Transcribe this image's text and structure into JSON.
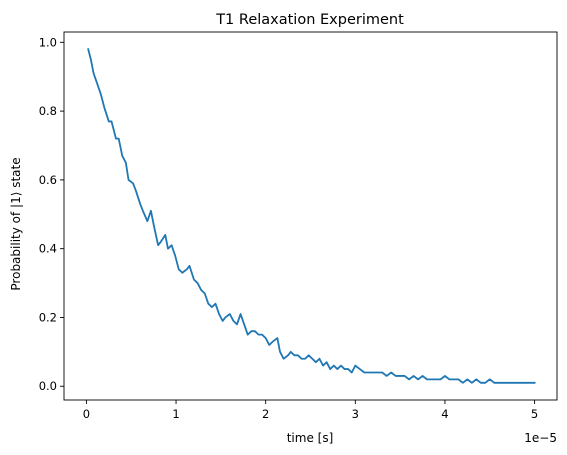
{
  "chart_data": {
    "type": "line",
    "title": "T1 Relaxation Experiment",
    "xlabel": "time [s]",
    "ylabel": "Probability of |1⟩ state",
    "x_offset_label": "1e−5",
    "x_scale": 1e-05,
    "xlim": [
      -0.25,
      5.25
    ],
    "ylim": [
      -0.04,
      1.03
    ],
    "x_ticks": [
      0,
      1,
      2,
      3,
      4,
      5
    ],
    "x_tick_labels": [
      "0",
      "1",
      "2",
      "3",
      "4",
      "5"
    ],
    "y_ticks": [
      0.0,
      0.2,
      0.4,
      0.6,
      0.8,
      1.0
    ],
    "y_tick_labels": [
      "0.0",
      "0.2",
      "0.4",
      "0.6",
      "0.8",
      "1.0"
    ],
    "grid": false,
    "line_color": "#1f77b4",
    "series": [
      {
        "x": [
          0.02,
          0.05,
          0.08,
          0.12,
          0.16,
          0.2,
          0.25,
          0.28,
          0.33,
          0.36,
          0.4,
          0.44,
          0.47,
          0.52,
          0.55,
          0.6,
          0.63,
          0.68,
          0.72,
          0.75,
          0.8,
          0.83,
          0.88,
          0.91,
          0.95,
          0.99,
          1.03,
          1.07,
          1.12,
          1.15,
          1.2,
          1.24,
          1.28,
          1.32,
          1.36,
          1.4,
          1.44,
          1.48,
          1.52,
          1.55,
          1.6,
          1.64,
          1.68,
          1.72,
          1.76,
          1.8,
          1.84,
          1.88,
          1.92,
          1.96,
          2.0,
          2.04,
          2.08,
          2.13,
          2.16,
          2.2,
          2.25,
          2.28,
          2.32,
          2.36,
          2.4,
          2.44,
          2.48,
          2.52,
          2.56,
          2.6,
          2.64,
          2.68,
          2.72,
          2.76,
          2.8,
          2.84,
          2.88,
          2.92,
          2.96,
          3.0,
          3.05,
          3.1,
          3.15,
          3.2,
          3.25,
          3.3,
          3.35,
          3.4,
          3.45,
          3.5,
          3.55,
          3.6,
          3.65,
          3.7,
          3.75,
          3.8,
          3.85,
          3.9,
          3.95,
          4.0,
          4.05,
          4.1,
          4.15,
          4.2,
          4.25,
          4.3,
          4.35,
          4.4,
          4.45,
          4.5,
          4.55,
          4.6,
          4.65,
          4.7,
          4.75,
          4.8,
          4.85,
          4.9,
          4.95,
          5.0
        ],
        "values": [
          0.98,
          0.95,
          0.91,
          0.88,
          0.85,
          0.81,
          0.77,
          0.77,
          0.72,
          0.72,
          0.67,
          0.65,
          0.6,
          0.59,
          0.57,
          0.53,
          0.51,
          0.48,
          0.51,
          0.47,
          0.41,
          0.42,
          0.44,
          0.4,
          0.41,
          0.38,
          0.34,
          0.33,
          0.34,
          0.35,
          0.31,
          0.3,
          0.28,
          0.27,
          0.24,
          0.23,
          0.24,
          0.21,
          0.19,
          0.2,
          0.21,
          0.19,
          0.18,
          0.21,
          0.18,
          0.15,
          0.16,
          0.16,
          0.15,
          0.15,
          0.14,
          0.12,
          0.13,
          0.14,
          0.1,
          0.08,
          0.09,
          0.1,
          0.09,
          0.09,
          0.08,
          0.08,
          0.09,
          0.08,
          0.07,
          0.08,
          0.06,
          0.07,
          0.05,
          0.06,
          0.05,
          0.06,
          0.05,
          0.05,
          0.04,
          0.06,
          0.05,
          0.04,
          0.04,
          0.04,
          0.04,
          0.04,
          0.03,
          0.04,
          0.03,
          0.03,
          0.03,
          0.02,
          0.03,
          0.02,
          0.03,
          0.02,
          0.02,
          0.02,
          0.02,
          0.03,
          0.02,
          0.02,
          0.02,
          0.01,
          0.02,
          0.01,
          0.02,
          0.01,
          0.01,
          0.02,
          0.01,
          0.01,
          0.01,
          0.01,
          0.01,
          0.01,
          0.01,
          0.01,
          0.01,
          0.01
        ]
      }
    ]
  }
}
